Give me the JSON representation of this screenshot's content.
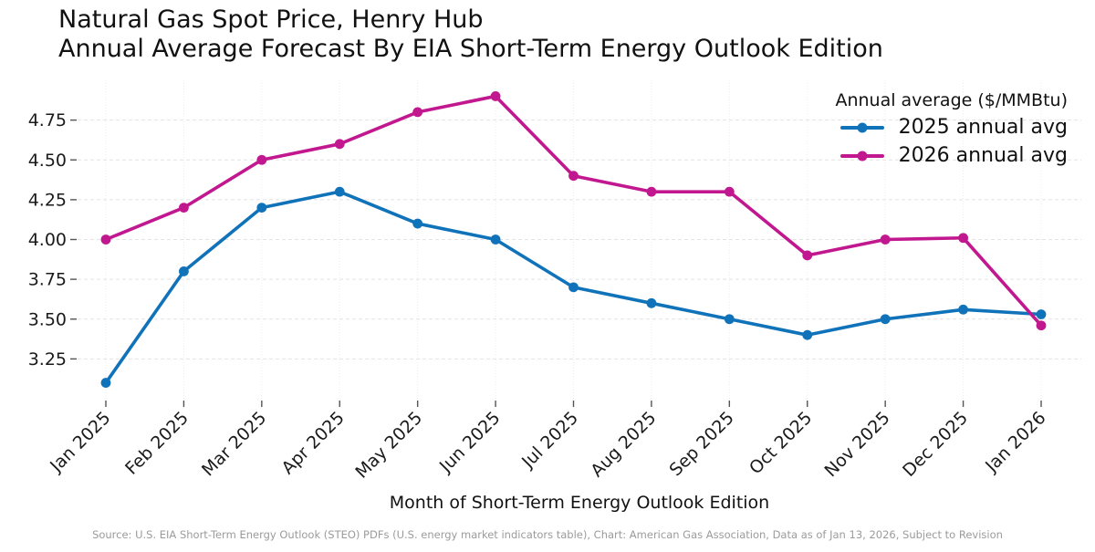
{
  "header": {
    "title_line1": "Natural Gas Spot Price, Henry Hub",
    "title_line2": "Annual Average Forecast By EIA Short-Term Energy Outlook Edition"
  },
  "footer": {
    "source_note": "Source: U.S. EIA Short-Term Energy Outlook (STEO) PDFs (U.S. energy market indicators table), Chart: American Gas Association, Data as of Jan 13, 2026, Subject to Revision"
  },
  "chart_data": {
    "type": "line",
    "title": "Natural Gas Spot Price, Henry Hub",
    "subtitle": "Annual Average Forecast By EIA Short-Term Energy Outlook Edition",
    "xlabel": "Month of Short-Term Energy Outlook Edition",
    "ylabel": "",
    "legend_title": "Annual average ($/MMBtu)",
    "legend_position": "top-right",
    "grid": true,
    "categories": [
      "Jan 2025",
      "Feb 2025",
      "Mar 2025",
      "Apr 2025",
      "May 2025",
      "Jun 2025",
      "Jul 2025",
      "Aug 2025",
      "Sep 2025",
      "Oct 2025",
      "Nov 2025",
      "Dec 2025",
      "Jan 2026"
    ],
    "series": [
      {
        "name": "2025 annual avg",
        "color": "#1073ba",
        "values": [
          3.1,
          3.8,
          4.2,
          4.3,
          4.1,
          4.0,
          3.7,
          3.6,
          3.5,
          3.4,
          3.5,
          3.56,
          3.53
        ]
      },
      {
        "name": "2026 annual avg",
        "color": "#c2188f",
        "values": [
          4.0,
          4.2,
          4.5,
          4.6,
          4.8,
          4.9,
          4.4,
          4.3,
          4.3,
          3.9,
          4.0,
          4.01,
          3.46
        ]
      }
    ],
    "ylim": [
      3.0,
      5.0
    ],
    "yticks": [
      3.25,
      3.5,
      3.75,
      4.0,
      4.25,
      4.5,
      4.75
    ],
    "colors": {
      "series_2025": "#1073ba",
      "series_2026": "#c2188f",
      "gridline": "#e2e2e2",
      "tick_mark": "#555555",
      "text": "#1a1a1a",
      "footer_text": "#9b9b9b"
    }
  }
}
